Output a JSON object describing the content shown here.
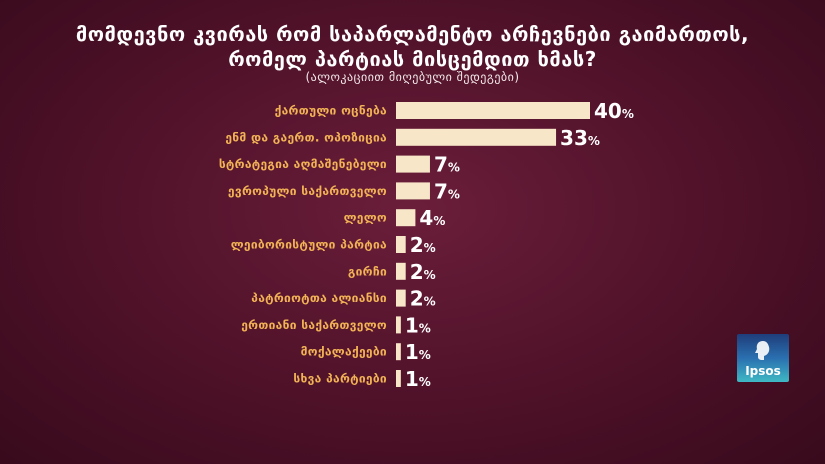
{
  "title_line1": "მომდევნო კვირას რომ საპარლამენტო არჩევნები გაიმართოს,",
  "title_line2": "რომელ პარტიას მისცემდით ხმას?",
  "subtitle": "(ალოკაციით მიღებული შედეგები)",
  "logo": {
    "text": "Ipsos"
  },
  "chart_data": {
    "type": "bar",
    "orientation": "horizontal",
    "title": "მომდევნო კვირას რომ საპარლამენტო არჩევნები გაიმართოს, რომელ პარტიას მისცემდით ხმას?",
    "subtitle": "(ალოკაციით მიღებული შედეგები)",
    "categories": [
      "ქართული ოცნება",
      "ენმ და გაერთ. ოპოზიცია",
      "სტრატეგია აღმაშენებელი",
      "ევროპული საქართველო",
      "ლელო",
      "ლეიბორისტული პარტია",
      "გირჩი",
      "პატრიოტთა ალიანსი",
      "ერთიანი საქართველო",
      "მოქალაქეები",
      "სხვა პარტიები"
    ],
    "values": [
      40,
      33,
      7,
      7,
      4,
      2,
      2,
      2,
      1,
      1,
      1
    ],
    "unit": "%",
    "bar_color": "#f8e6c9",
    "label_color": "#f2b356",
    "xlim": [
      0,
      40
    ]
  }
}
